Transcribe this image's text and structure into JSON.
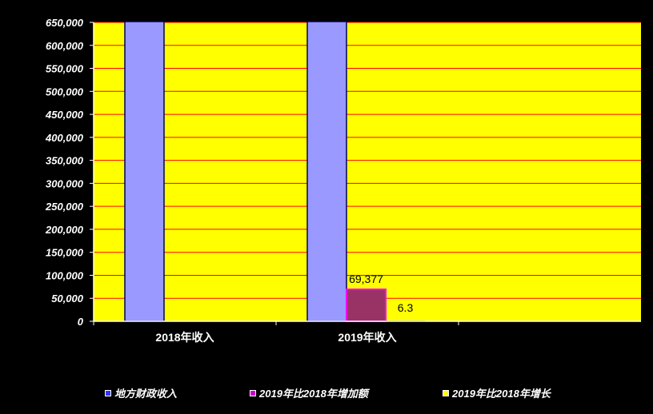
{
  "chart_data": {
    "type": "bar",
    "categories": [
      "2018年收入",
      "2019年收入"
    ],
    "series": [
      {
        "name": "地方财政收入",
        "values": [
          null,
          null
        ],
        "color": "#9999ff"
      },
      {
        "name": "2019年比2018年增加额",
        "values": [
          null,
          69377
        ],
        "color": "#993366"
      },
      {
        "name": "2019年比2018年增长",
        "values": [
          null,
          6.3
        ],
        "color": "#ffff00"
      }
    ],
    "data_labels": [
      {
        "series": 1,
        "category": 1,
        "text": "69,377"
      },
      {
        "series": 2,
        "category": 1,
        "text": "6.3"
      }
    ],
    "ylim": [
      0,
      650000
    ],
    "yticks": [
      0,
      50000,
      100000,
      150000,
      200000,
      250000,
      300000,
      350000,
      400000,
      450000,
      500000,
      550000,
      600000,
      650000
    ],
    "ytick_labels": [
      "0",
      "50,000",
      "100,000",
      "150,000",
      "200,000",
      "250,000",
      "300,000",
      "350,000",
      "400,000",
      "450,000",
      "500,000",
      "550,000",
      "600,000",
      "650,000"
    ],
    "grid": true,
    "plot_background": "#ffff00",
    "gridline_color": "#ff0000",
    "legend_position": "bottom"
  }
}
